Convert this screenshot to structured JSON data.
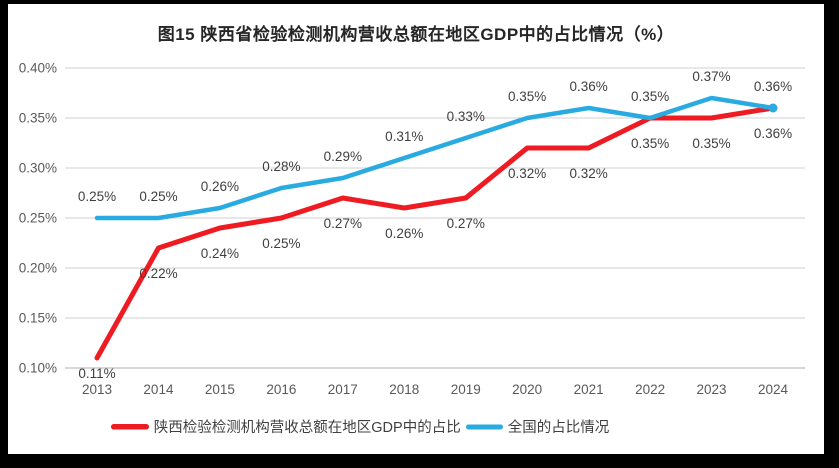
{
  "chart_data": {
    "type": "line",
    "title": "图15 陕西省检验检测机构营收总额在地区GDP中的占比情况（%）",
    "categories": [
      "2013",
      "2014",
      "2015",
      "2016",
      "2017",
      "2018",
      "2019",
      "2020",
      "2021",
      "2022",
      "2023",
      "2024"
    ],
    "series": [
      {
        "name": "陕西检验检测机构营收总额在地区GDP中的占比",
        "color": "#ee1c22",
        "values": [
          0.11,
          0.22,
          0.24,
          0.25,
          0.27,
          0.26,
          0.27,
          0.32,
          0.32,
          0.35,
          0.35,
          0.36
        ],
        "labels": [
          "0.11%",
          "0.22%",
          "0.24%",
          "0.25%",
          "0.27%",
          "0.26%",
          "0.27%",
          "0.32%",
          "0.32%",
          "0.35%",
          "0.35%",
          "0.36%"
        ],
        "label_position": "below",
        "end_marker": false
      },
      {
        "name": "全国的占比情况",
        "color": "#29abe2",
        "values": [
          0.25,
          0.25,
          0.26,
          0.28,
          0.29,
          0.31,
          0.33,
          0.35,
          0.36,
          0.35,
          0.37,
          0.36
        ],
        "labels": [
          "0.25%",
          "0.25%",
          "0.26%",
          "0.28%",
          "0.29%",
          "0.31%",
          "0.33%",
          "0.35%",
          "0.36%",
          "0.35%",
          "0.37%",
          "0.36%"
        ],
        "label_position": "above",
        "end_marker": true
      }
    ],
    "y_axis": {
      "min": 0.1,
      "max": 0.4,
      "step": 0.05,
      "tick_labels": [
        "0.10%",
        "0.15%",
        "0.20%",
        "0.25%",
        "0.30%",
        "0.35%",
        "0.40%"
      ],
      "unit": "%"
    },
    "x_axis": {
      "tick_labels": [
        "2013",
        "2014",
        "2015",
        "2016",
        "2017",
        "2018",
        "2019",
        "2020",
        "2021",
        "2022",
        "2023",
        "2024"
      ]
    },
    "grid": true,
    "legend_position": "bottom",
    "colors": {
      "gridline": "#d9d9d9",
      "axis_line": "#bfbfbf",
      "tick_text": "#595959",
      "data_label_text": "#3f3f3f",
      "title_text": "#262626"
    }
  }
}
